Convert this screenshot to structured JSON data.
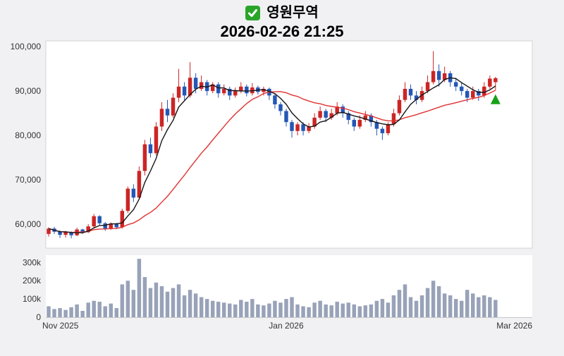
{
  "header": {
    "checkbox_icon": "green-checked-box",
    "title": "영원무역",
    "datetime": "2026-02-26 21:25"
  },
  "chart_data": {
    "type": "candlestick",
    "title": "영원무역",
    "subtitle": "2026-02-26 21:25",
    "ohlc_format": [
      "open",
      "high",
      "low",
      "close",
      "volume"
    ],
    "price_axis": {
      "ticks": [
        "100,000",
        "90,000",
        "80,000",
        "70,000",
        "60,000"
      ],
      "tick_values": [
        100000,
        90000,
        80000,
        70000,
        60000
      ],
      "ylim": [
        54600,
        101300
      ]
    },
    "volume_axis": {
      "ticks": [
        "300k",
        "200k",
        "100k",
        "0"
      ],
      "tick_values": [
        300000,
        200000,
        100000,
        0
      ],
      "ylim": [
        0,
        340000
      ]
    },
    "x_ticks": [
      {
        "label": "Nov 2025",
        "slot": 0
      },
      {
        "label": "Jan 2026",
        "slot": 42.5
      },
      {
        "label": "Mar 2026",
        "slot": 86
      }
    ],
    "total_slots": 86,
    "grid": false,
    "up_color": "#cc2525",
    "down_color": "#2457b5",
    "volume_color": "#98a2b8",
    "ma_short": {
      "period": 5,
      "color": "#151515"
    },
    "ma_long": {
      "period": 20,
      "color": "#e03232"
    },
    "signal_marker": {
      "slot": 79,
      "price": 88000,
      "shape": "triangle-up",
      "color": "#18a018"
    },
    "candles": [
      [
        57800,
        59300,
        57200,
        59000,
        60000
      ],
      [
        59000,
        59400,
        57800,
        58300,
        45000
      ],
      [
        58300,
        58600,
        56900,
        57600,
        50000
      ],
      [
        57600,
        58500,
        57000,
        58200,
        40000
      ],
      [
        58200,
        58400,
        56800,
        57500,
        55000
      ],
      [
        57500,
        59200,
        57300,
        58800,
        70000
      ],
      [
        58800,
        59000,
        57800,
        58200,
        35000
      ],
      [
        58200,
        60000,
        58000,
        59500,
        80000
      ],
      [
        59500,
        62300,
        59200,
        61800,
        90000
      ],
      [
        61800,
        62000,
        59800,
        60200,
        85000
      ],
      [
        60200,
        60500,
        58500,
        59000,
        60000
      ],
      [
        59000,
        60400,
        58700,
        60000,
        75000
      ],
      [
        60000,
        60300,
        58900,
        59300,
        50000
      ],
      [
        59300,
        63500,
        59000,
        63000,
        180000
      ],
      [
        63000,
        68500,
        62500,
        68000,
        200000
      ],
      [
        68000,
        69000,
        65000,
        66000,
        150000
      ],
      [
        66000,
        73000,
        65500,
        72000,
        320000
      ],
      [
        72000,
        79000,
        71000,
        78000,
        220000
      ],
      [
        78000,
        79500,
        75000,
        76000,
        160000
      ],
      [
        76000,
        83000,
        75500,
        82000,
        190000
      ],
      [
        82000,
        87500,
        81000,
        86000,
        170000
      ],
      [
        86000,
        88000,
        83000,
        84500,
        140000
      ],
      [
        84500,
        89500,
        84000,
        88500,
        160000
      ],
      [
        88500,
        95000,
        87500,
        91000,
        180000
      ],
      [
        91000,
        92000,
        88000,
        89000,
        120000
      ],
      [
        89000,
        96500,
        88500,
        93000,
        150000
      ],
      [
        93000,
        94000,
        89500,
        90500,
        130000
      ],
      [
        90500,
        93500,
        90000,
        92000,
        110000
      ],
      [
        92000,
        92500,
        89000,
        90000,
        100000
      ],
      [
        90000,
        92000,
        89500,
        91500,
        90000
      ],
      [
        91500,
        92000,
        88500,
        89500,
        85000
      ],
      [
        89500,
        91500,
        89000,
        90500,
        80000
      ],
      [
        90500,
        91000,
        88000,
        89000,
        75000
      ],
      [
        89000,
        90800,
        88500,
        90000,
        70000
      ],
      [
        90000,
        92000,
        89500,
        91000,
        95000
      ],
      [
        91000,
        91500,
        88800,
        89500,
        85000
      ],
      [
        89500,
        91800,
        89000,
        90800,
        100000
      ],
      [
        90800,
        91200,
        89200,
        89800,
        70000
      ],
      [
        89800,
        91000,
        89000,
        90500,
        65000
      ],
      [
        90500,
        90800,
        88000,
        89000,
        75000
      ],
      [
        89000,
        89500,
        86000,
        87000,
        90000
      ],
      [
        87000,
        87500,
        84500,
        85500,
        80000
      ],
      [
        85500,
        86000,
        82000,
        83000,
        100000
      ],
      [
        83000,
        83500,
        79500,
        81000,
        110000
      ],
      [
        81000,
        83000,
        80000,
        82500,
        70000
      ],
      [
        82500,
        83000,
        80000,
        81000,
        60000
      ],
      [
        81000,
        82800,
        80500,
        82000,
        55000
      ],
      [
        82000,
        85000,
        81500,
        84000,
        80000
      ],
      [
        84000,
        86500,
        83500,
        85500,
        90000
      ],
      [
        85500,
        86000,
        83000,
        84000,
        70000
      ],
      [
        84000,
        86000,
        83500,
        85000,
        65000
      ],
      [
        85000,
        87500,
        84500,
        86500,
        85000
      ],
      [
        86500,
        87000,
        84000,
        85000,
        75000
      ],
      [
        85000,
        85500,
        82500,
        83500,
        80000
      ],
      [
        83500,
        84000,
        81000,
        82000,
        70000
      ],
      [
        82000,
        84500,
        81500,
        83500,
        60000
      ],
      [
        83500,
        85500,
        83000,
        84500,
        65000
      ],
      [
        84500,
        85000,
        82000,
        83000,
        70000
      ],
      [
        83000,
        83500,
        80000,
        81500,
        90000
      ],
      [
        81500,
        82000,
        79000,
        80500,
        100000
      ],
      [
        80500,
        83000,
        80000,
        82500,
        80000
      ],
      [
        82500,
        86000,
        82000,
        85000,
        120000
      ],
      [
        85000,
        89000,
        84500,
        88000,
        150000
      ],
      [
        88000,
        92000,
        87500,
        90500,
        180000
      ],
      [
        90500,
        91500,
        88000,
        89000,
        110000
      ],
      [
        89000,
        90000,
        87000,
        88000,
        90000
      ],
      [
        88000,
        91000,
        87500,
        90000,
        120000
      ],
      [
        90000,
        93500,
        89500,
        92000,
        160000
      ],
      [
        92000,
        99000,
        91500,
        94500,
        200000
      ],
      [
        94500,
        96000,
        91000,
        92500,
        170000
      ],
      [
        92500,
        95500,
        92000,
        94000,
        130000
      ],
      [
        94000,
        94500,
        91000,
        92000,
        120000
      ],
      [
        92000,
        93000,
        90000,
        91000,
        100000
      ],
      [
        91000,
        92000,
        89000,
        90000,
        90000
      ],
      [
        90000,
        90500,
        87500,
        88500,
        150000
      ],
      [
        88500,
        91000,
        88000,
        90000,
        130000
      ],
      [
        90000,
        90500,
        87800,
        89000,
        110000
      ],
      [
        89000,
        92000,
        88500,
        91000,
        120000
      ],
      [
        91000,
        93500,
        90500,
        92800,
        110000
      ],
      [
        92000,
        93200,
        90200,
        92900,
        95000
      ]
    ]
  }
}
